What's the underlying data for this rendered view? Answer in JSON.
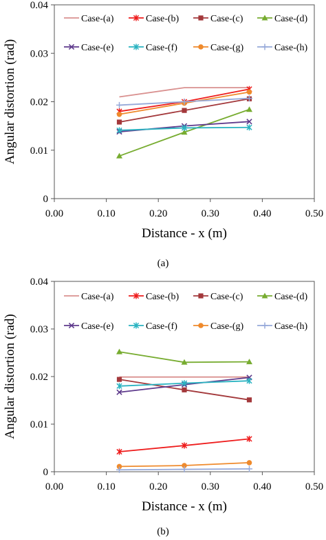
{
  "chart_data": [
    {
      "type": "line",
      "caption": "(a)",
      "xlabel": "Distance - x (m)",
      "ylabel": "Angular distortion (rad)",
      "xlim": [
        0,
        0.5
      ],
      "ylim": [
        0,
        0.04
      ],
      "x_ticks": [
        "0.00",
        "0.10",
        "0.20",
        "0.30",
        "0.40",
        "0.50"
      ],
      "y_ticks": [
        "0",
        "0.01",
        "0.02",
        "0.03",
        "0.04"
      ],
      "grid": false,
      "legend": "top, 4 columns",
      "x": [
        0.125,
        0.25,
        0.375
      ],
      "series": [
        {
          "name": "Case-(a)",
          "color": "#d9908f",
          "marker": "none",
          "values": [
            0.021,
            0.0229,
            0.0229
          ]
        },
        {
          "name": "Case-(b)",
          "color": "#ee1c1c",
          "marker": "star",
          "values": [
            0.018,
            0.02,
            0.0226
          ]
        },
        {
          "name": "Case-(c)",
          "color": "#a3383b",
          "marker": "square",
          "values": [
            0.0158,
            0.0182,
            0.0206
          ]
        },
        {
          "name": "Case-(d)",
          "color": "#77ac30",
          "marker": "triangle",
          "values": [
            0.0088,
            0.0137,
            0.0184
          ]
        },
        {
          "name": "Case-(e)",
          "color": "#5e3a8c",
          "marker": "x",
          "values": [
            0.0138,
            0.015,
            0.0159
          ]
        },
        {
          "name": "Case-(f)",
          "color": "#2ab3c1",
          "marker": "asterisk",
          "values": [
            0.0141,
            0.0146,
            0.0147
          ]
        },
        {
          "name": "Case-(g)",
          "color": "#ef8a2c",
          "marker": "circle",
          "values": [
            0.0174,
            0.0197,
            0.022
          ]
        },
        {
          "name": "Case-(h)",
          "color": "#96a9d9",
          "marker": "plus",
          "values": [
            0.0193,
            0.02,
            0.0207
          ]
        }
      ]
    },
    {
      "type": "line",
      "caption": "(b)",
      "xlabel": "Distance - x (m)",
      "ylabel": "Angular distortion (rad)",
      "xlim": [
        0,
        0.5
      ],
      "ylim": [
        0,
        0.04
      ],
      "x_ticks": [
        "0.00",
        "0.10",
        "0.20",
        "0.30",
        "0.40",
        "0.50"
      ],
      "y_ticks": [
        "0",
        "0.01",
        "0.02",
        "0.03",
        "0.04"
      ],
      "grid": false,
      "legend": "top, 4 columns",
      "x": [
        0.125,
        0.25,
        0.375
      ],
      "series": [
        {
          "name": "Case-(a)",
          "color": "#d9908f",
          "marker": "none",
          "values": [
            0.0199,
            0.0199,
            0.0199
          ]
        },
        {
          "name": "Case-(b)",
          "color": "#ee1c1c",
          "marker": "star",
          "values": [
            0.0042,
            0.0055,
            0.0069
          ]
        },
        {
          "name": "Case-(c)",
          "color": "#a3383b",
          "marker": "square",
          "values": [
            0.0194,
            0.0172,
            0.0151
          ]
        },
        {
          "name": "Case-(d)",
          "color": "#77ac30",
          "marker": "triangle",
          "values": [
            0.0252,
            0.023,
            0.0231
          ]
        },
        {
          "name": "Case-(e)",
          "color": "#5e3a8c",
          "marker": "x",
          "values": [
            0.0167,
            0.0183,
            0.0198
          ]
        },
        {
          "name": "Case-(f)",
          "color": "#2ab3c1",
          "marker": "asterisk",
          "values": [
            0.018,
            0.0186,
            0.0191
          ]
        },
        {
          "name": "Case-(g)",
          "color": "#ef8a2c",
          "marker": "circle",
          "values": [
            0.0011,
            0.0013,
            0.0019
          ]
        },
        {
          "name": "Case-(h)",
          "color": "#96a9d9",
          "marker": "plus",
          "values": [
            0.0004,
            0.0005,
            0.0006
          ]
        }
      ]
    }
  ]
}
